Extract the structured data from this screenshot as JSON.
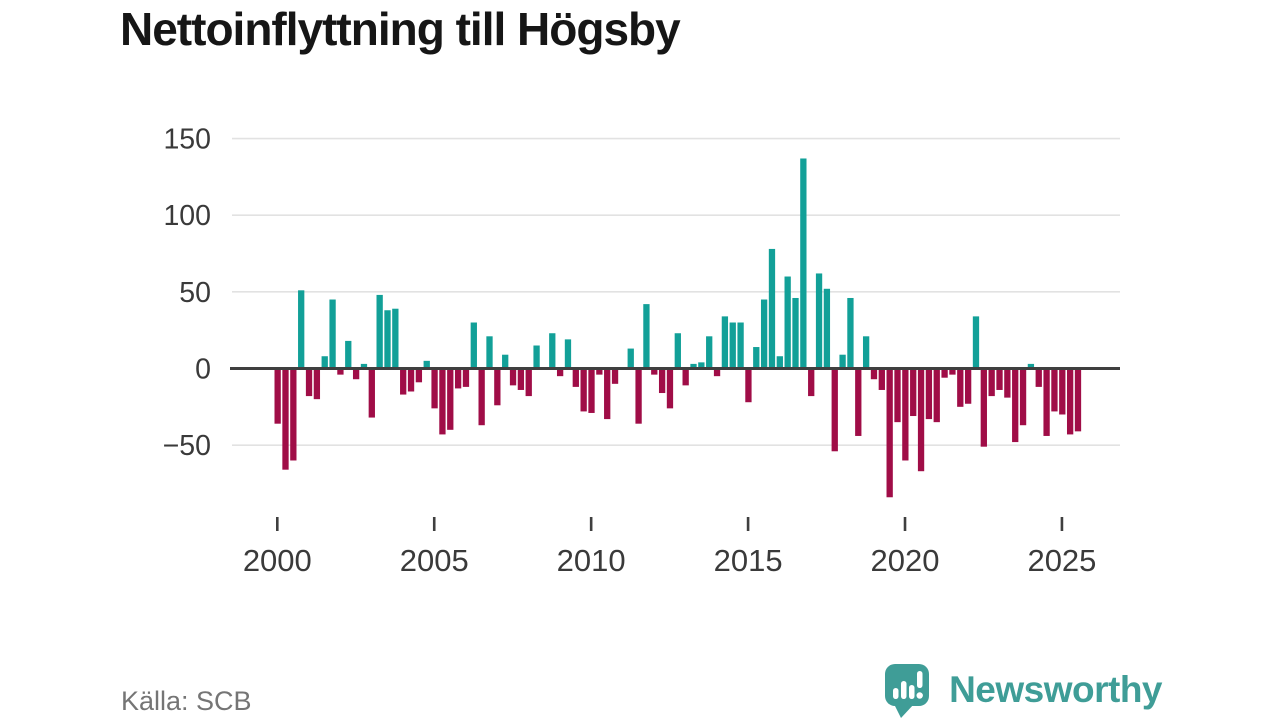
{
  "page": {
    "title": "Nettoinflyttning till Högsby",
    "source": "Källa: SCB"
  },
  "brand": {
    "name": "Newsworthy",
    "icon": "bar-chart-speech-bubble-icon",
    "color": "#3f9d97"
  },
  "colors": {
    "background": "#ffffff",
    "title_text": "#161616",
    "axis_text": "#3a3a3a",
    "gridline": "#e2e2e2",
    "zero_line": "#3f3f3f",
    "tick_mark": "#3f3f3f",
    "source_text": "#757575",
    "positive_bar": "#12a098",
    "negative_bar": "#a00d47"
  },
  "chart_data": {
    "type": "bar",
    "title": "Nettoinflyttning till Högsby",
    "frequency": "quarterly",
    "start": "2000-Q1",
    "end": "2025-Q3",
    "grid": true,
    "legend": false,
    "xtick_labels": [
      "2000",
      "2005",
      "2010",
      "2015",
      "2020",
      "2025"
    ],
    "ytick_values": [
      150,
      100,
      50,
      0,
      -50
    ],
    "ytick_labels": [
      "150",
      "100",
      "50",
      "0",
      "−50"
    ],
    "ylim": [
      -90,
      155
    ],
    "positive_color": "#12a098",
    "negative_color": "#a00d47",
    "values": [
      -36,
      -66,
      -60,
      51,
      -18,
      -20,
      8,
      45,
      -4,
      18,
      -7,
      3,
      -32,
      48,
      38,
      39,
      -17,
      -15,
      -9,
      5,
      -26,
      -43,
      -40,
      -13,
      -12,
      30,
      -37,
      21,
      -24,
      9,
      -11,
      -14,
      -18,
      15,
      0,
      23,
      -5,
      19,
      -12,
      -28,
      -29,
      -4,
      -33,
      -10,
      0,
      13,
      -36,
      42,
      -4,
      -16,
      -26,
      23,
      -11,
      3,
      4,
      21,
      -5,
      34,
      30,
      30,
      -22,
      14,
      45,
      78,
      8,
      60,
      46,
      137,
      -18,
      62,
      52,
      -54,
      9,
      46,
      -44,
      21,
      -7,
      -14,
      -84,
      -35,
      -60,
      -31,
      -67,
      -33,
      -35,
      -6,
      -4,
      -25,
      -23,
      34,
      -51,
      -18,
      -14,
      -19,
      -48,
      -37,
      3,
      -12,
      -44,
      -28,
      -30,
      -43,
      -41
    ]
  }
}
